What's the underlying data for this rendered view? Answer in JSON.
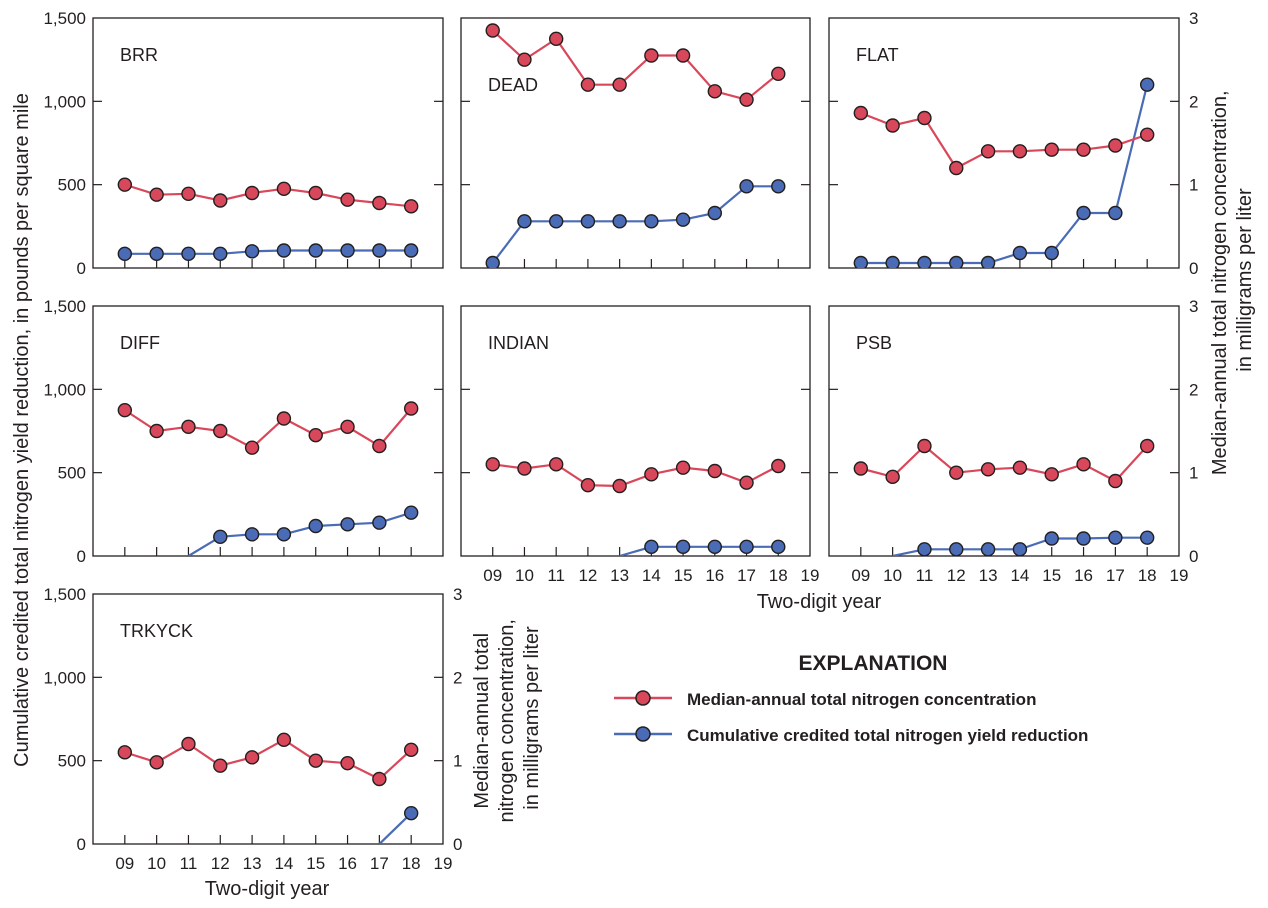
{
  "chart_data": {
    "type": "line",
    "x_tick_labels": [
      "09",
      "10",
      "11",
      "12",
      "13",
      "14",
      "15",
      "16",
      "17",
      "18",
      "19"
    ],
    "x_range": [
      2008,
      2019
    ],
    "xlabel": "Two-digit year",
    "ylabel_left": "Cumulative credited total nitrogen yield reduction, in pounds per square mile",
    "ylabel_right_lines": [
      "Median-annual total nitrogen concentration,",
      "in milligrams per liter"
    ],
    "ylabel_right_small_lines": [
      "Median-annual total",
      "nitrogen concentration,",
      "in milligrams per liter"
    ],
    "y_left_range": [
      0,
      1500
    ],
    "y_left_ticks": [
      "0",
      "500",
      "1,000",
      "1,500"
    ],
    "y_right_range": [
      0,
      3
    ],
    "y_right_ticks": [
      "0",
      "1",
      "2",
      "3"
    ],
    "colors": {
      "concentration": "#d9475a",
      "reduction": "#4a6bb5"
    },
    "legend": {
      "title": "EXPLANATION",
      "concentration_label": "Median-annual total nitrogen concentration",
      "reduction_label": "Cumulative credited total nitrogen yield reduction"
    },
    "panels": [
      {
        "name": "BRR",
        "x": [
          2009,
          2010,
          2011,
          2012,
          2013,
          2014,
          2015,
          2016,
          2017,
          2018
        ],
        "concentration_mg_per_L": [
          1.0,
          0.88,
          0.89,
          0.81,
          0.9,
          0.95,
          0.9,
          0.82,
          0.78,
          0.74
        ],
        "reduction_x": [
          2009,
          2010,
          2011,
          2012,
          2013,
          2014,
          2015,
          2016,
          2017,
          2018
        ],
        "reduction_lb_per_sq_mi": [
          85,
          85,
          85,
          85,
          100,
          105,
          105,
          105,
          105,
          105
        ]
      },
      {
        "name": "DEAD",
        "x": [
          2009,
          2010,
          2011,
          2012,
          2013,
          2014,
          2015,
          2016,
          2017,
          2018
        ],
        "concentration_mg_per_L": [
          2.85,
          2.5,
          2.75,
          2.2,
          2.2,
          2.55,
          2.55,
          2.12,
          2.02,
          2.33
        ],
        "reduction_x": [
          2009,
          2010,
          2011,
          2012,
          2013,
          2014,
          2015,
          2016,
          2017,
          2018
        ],
        "reduction_lb_per_sq_mi": [
          30,
          280,
          280,
          280,
          280,
          280,
          290,
          330,
          490,
          490
        ]
      },
      {
        "name": "FLAT",
        "x": [
          2009,
          2010,
          2011,
          2012,
          2013,
          2014,
          2015,
          2016,
          2017,
          2018
        ],
        "concentration_mg_per_L": [
          1.86,
          1.71,
          1.8,
          1.2,
          1.4,
          1.4,
          1.42,
          1.42,
          1.47,
          1.6
        ],
        "reduction_x": [
          2009,
          2010,
          2011,
          2012,
          2013,
          2014,
          2015,
          2016,
          2017,
          2018
        ],
        "reduction_lb_per_sq_mi": [
          30,
          30,
          30,
          30,
          30,
          90,
          90,
          330,
          330,
          1100
        ]
      },
      {
        "name": "DIFF",
        "x": [
          2009,
          2010,
          2011,
          2012,
          2013,
          2014,
          2015,
          2016,
          2017,
          2018
        ],
        "concentration_mg_per_L": [
          1.75,
          1.5,
          1.55,
          1.5,
          1.3,
          1.65,
          1.45,
          1.55,
          1.32,
          1.77
        ],
        "reduction_x": [
          2011,
          2012,
          2013,
          2014,
          2015,
          2016,
          2017,
          2018
        ],
        "reduction_lb_per_sq_mi": [
          0,
          115,
          130,
          130,
          180,
          190,
          200,
          260
        ]
      },
      {
        "name": "INDIAN",
        "x": [
          2009,
          2010,
          2011,
          2012,
          2013,
          2014,
          2015,
          2016,
          2017,
          2018
        ],
        "concentration_mg_per_L": [
          1.1,
          1.05,
          1.1,
          0.85,
          0.84,
          0.98,
          1.06,
          1.02,
          0.88,
          1.08
        ],
        "reduction_x": [
          2013,
          2014,
          2015,
          2016,
          2017,
          2018
        ],
        "reduction_lb_per_sq_mi": [
          0,
          55,
          55,
          55,
          55,
          55
        ]
      },
      {
        "name": "PSB",
        "x": [
          2009,
          2010,
          2011,
          2012,
          2013,
          2014,
          2015,
          2016,
          2017,
          2018
        ],
        "concentration_mg_per_L": [
          1.05,
          0.95,
          1.32,
          1.0,
          1.04,
          1.06,
          0.98,
          1.1,
          0.9,
          1.32
        ],
        "reduction_x": [
          2010,
          2011,
          2012,
          2013,
          2014,
          2015,
          2016,
          2017,
          2018
        ],
        "reduction_lb_per_sq_mi": [
          0,
          40,
          40,
          40,
          40,
          105,
          105,
          110,
          110
        ]
      },
      {
        "name": "TRKYCK",
        "x": [
          2009,
          2010,
          2011,
          2012,
          2013,
          2014,
          2015,
          2016,
          2017,
          2018
        ],
        "concentration_mg_per_L": [
          1.1,
          0.98,
          1.2,
          0.94,
          1.04,
          1.25,
          1.0,
          0.97,
          0.78,
          1.13
        ],
        "reduction_x": [
          2017,
          2018
        ],
        "reduction_lb_per_sq_mi": [
          0,
          185
        ]
      }
    ]
  }
}
